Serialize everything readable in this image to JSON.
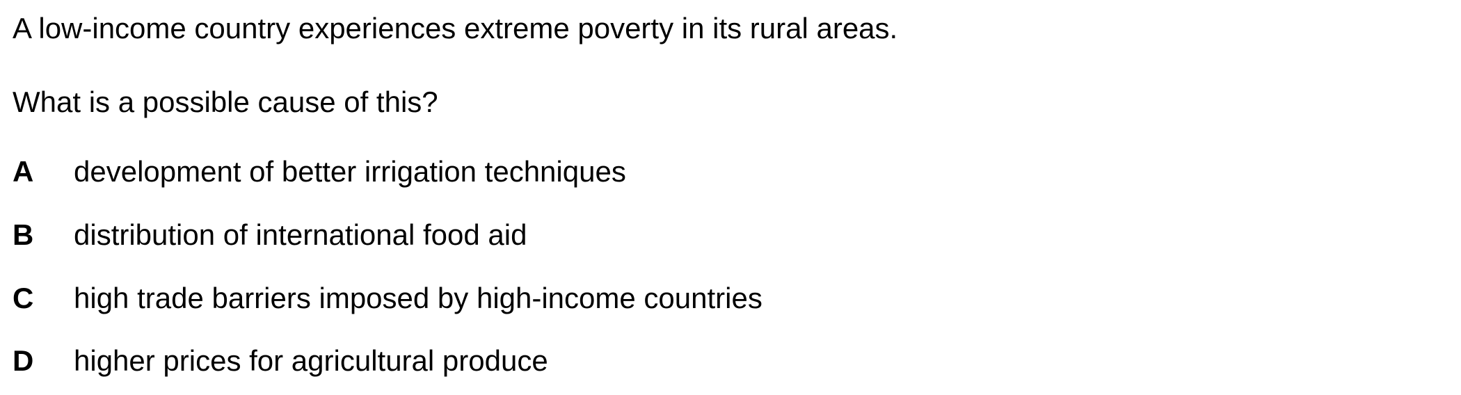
{
  "question": {
    "stem_line_1": "A low-income country experiences extreme poverty in its rural areas.",
    "stem_line_2": "What is a possible cause of this?"
  },
  "options": [
    {
      "letter": "A",
      "text": "development of better irrigation techniques"
    },
    {
      "letter": "B",
      "text": "distribution of international food aid"
    },
    {
      "letter": "C",
      "text": "high trade barriers imposed by high-income countries"
    },
    {
      "letter": "D",
      "text": "higher prices for agricultural produce"
    }
  ]
}
